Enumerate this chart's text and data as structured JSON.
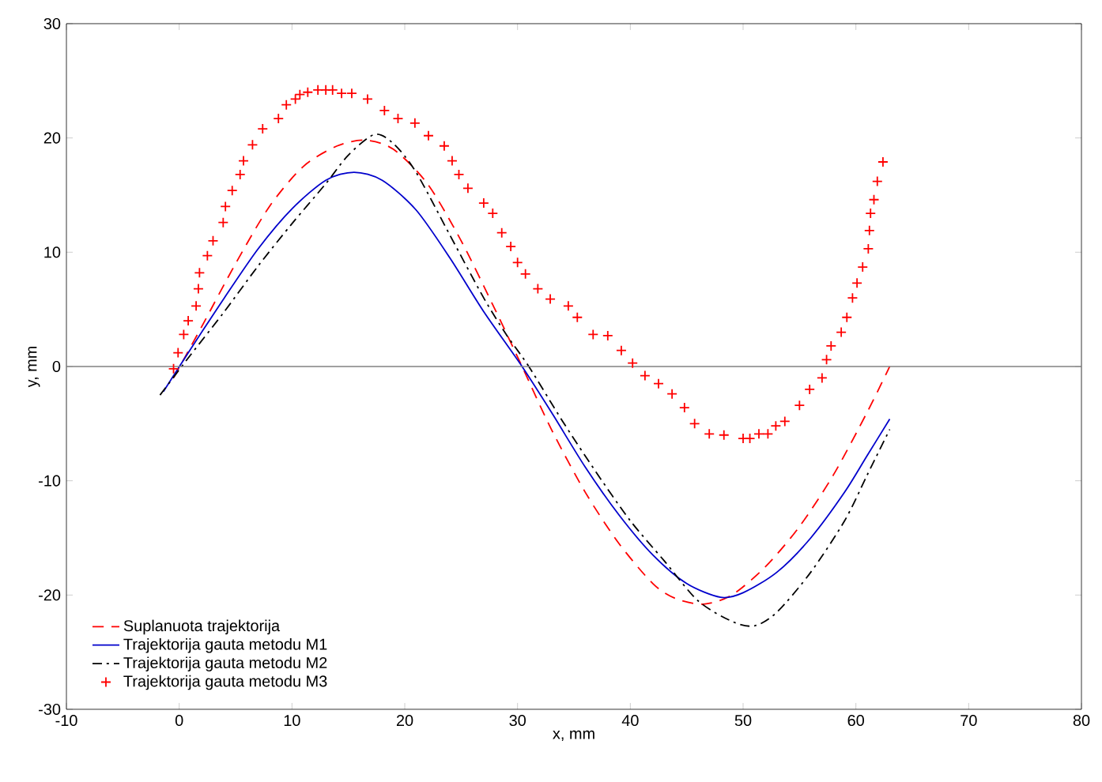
{
  "chart_data": {
    "type": "line",
    "xlabel": "x, mm",
    "ylabel": "y, mm",
    "xlim": [
      -10,
      80
    ],
    "xticks": [
      -10,
      0,
      10,
      20,
      30,
      40,
      50,
      60,
      70,
      80
    ],
    "ylim": [
      -30,
      30
    ],
    "yticks": [
      -30,
      -20,
      -10,
      0,
      10,
      20,
      30
    ],
    "grid": false,
    "legend": "bottom left",
    "ref_lines": [
      {
        "axis": "y",
        "value": 0,
        "color": "#808080"
      }
    ],
    "series": [
      {
        "name": "Suplanuota trajektorija",
        "color": "#ff0000",
        "line_style": "dashed",
        "marker": "none",
        "x": [
          -0.5,
          2,
          5,
          8,
          11,
          14,
          16.5,
          19,
          22,
          25,
          28,
          30.4,
          33,
          36,
          39,
          42,
          44,
          46.5,
          49,
          52,
          55,
          58,
          61,
          63
        ],
        "values": [
          -1,
          3.5,
          9,
          14,
          17.5,
          19.3,
          19.8,
          19,
          16,
          11,
          5,
          0,
          -5.5,
          -11,
          -15.5,
          -19,
          -20.3,
          -20.8,
          -20,
          -17.5,
          -14,
          -9.5,
          -4,
          0
        ]
      },
      {
        "name": "Trajektorija gauta metodu M1",
        "color": "#0000cc",
        "line_style": "solid",
        "marker": "none",
        "x": [
          -1.4,
          1,
          4,
          7,
          10,
          13,
          15.5,
          18,
          21,
          24,
          27,
          30.4,
          33,
          36,
          39,
          42,
          45,
          48,
          50,
          53,
          56,
          59,
          61,
          63
        ],
        "values": [
          -2.2,
          1.5,
          6,
          10.3,
          13.8,
          16.3,
          17,
          16.3,
          13.7,
          9.5,
          4.8,
          0,
          -4,
          -8.8,
          -13,
          -16.5,
          -19,
          -20.2,
          -19.8,
          -18,
          -15,
          -11,
          -7.8,
          -4.6
        ]
      },
      {
        "name": "Trajektorija gauta metodu M2",
        "color": "#000000",
        "line_style": "dashdotted",
        "marker": "none",
        "x": [
          -1.7,
          1,
          4,
          7,
          10,
          13,
          15,
          17.3,
          19,
          21,
          24,
          27,
          29,
          31,
          34,
          37,
          40,
          43,
          46,
          49,
          51,
          53,
          56,
          59,
          61,
          63
        ],
        "values": [
          -2.5,
          1,
          4.8,
          8.8,
          12.5,
          16,
          18.5,
          20.3,
          19.5,
          17,
          11.5,
          6,
          2.8,
          0,
          -4.8,
          -9.3,
          -13.5,
          -17,
          -20.5,
          -22.3,
          -22.7,
          -21.5,
          -18,
          -13.5,
          -9.5,
          -5.5
        ]
      },
      {
        "name": "Trajektorija gauta metodu M3",
        "type": "scatter",
        "color": "#ff0000",
        "marker": "cross",
        "x": [
          -0.5,
          -0.1,
          0.4,
          0.8,
          1.5,
          1.7,
          1.8,
          2.5,
          3,
          3.9,
          4.1,
          4.7,
          5.4,
          5.7,
          6.5,
          7.4,
          8.8,
          9.5,
          10.3,
          10.7,
          11.4,
          12.3,
          13,
          13.6,
          14.4,
          15.3,
          16.7,
          18.2,
          19.4,
          20.9,
          22.1,
          23.5,
          24.2,
          24.8,
          25.6,
          27,
          27.8,
          28.6,
          29.4,
          30,
          30.7,
          31.8,
          32.9,
          34.5,
          35.3,
          36.7,
          38,
          39.2,
          40.2,
          41.3,
          42.5,
          43.7,
          44.8,
          45.7,
          47,
          48.3,
          50,
          50.6,
          51.4,
          52.2,
          52.9,
          53.7,
          55,
          55.9,
          57,
          57.4,
          57.8,
          58.7,
          59.2,
          59.7,
          60.1,
          60.6,
          61.1,
          61.2,
          61.3,
          61.6,
          61.9,
          62.4
        ],
        "values": [
          -0.2,
          1.2,
          2.8,
          4,
          5.3,
          6.8,
          8.2,
          9.7,
          11,
          12.6,
          14,
          15.4,
          16.8,
          18,
          19.4,
          20.8,
          21.7,
          22.9,
          23.4,
          23.8,
          24,
          24.2,
          24.2,
          24.2,
          23.9,
          23.9,
          23.4,
          22.4,
          21.7,
          21.3,
          20.2,
          19.3,
          18,
          16.8,
          15.6,
          14.3,
          13.4,
          11.7,
          10.5,
          9.1,
          8.1,
          6.8,
          5.9,
          5.3,
          4.3,
          2.8,
          2.7,
          1.4,
          0.3,
          -0.8,
          -1.5,
          -2.4,
          -3.6,
          -5,
          -5.9,
          -6,
          -6.3,
          -6.3,
          -5.9,
          -5.9,
          -5.2,
          -4.8,
          -3.4,
          -2,
          -1,
          0.6,
          1.8,
          3,
          4.3,
          6,
          7.3,
          8.7,
          10.3,
          11.9,
          13.4,
          14.6,
          16.2,
          17.9
        ]
      }
    ]
  }
}
